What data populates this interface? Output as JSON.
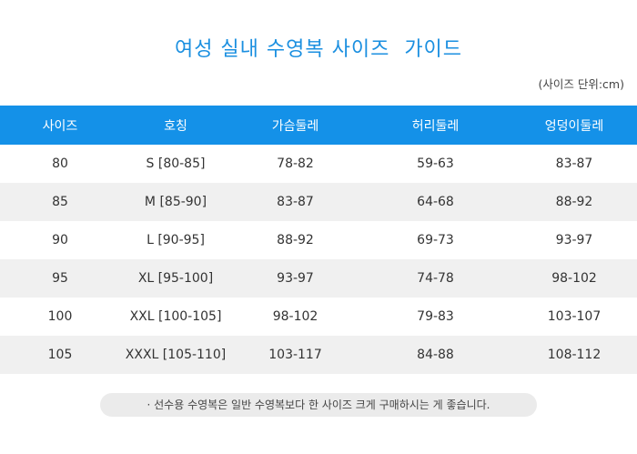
{
  "title": "여성 실내 수영복 사이즈  가이드",
  "unit": "(사이즈 단위:cm)",
  "table": {
    "headers": [
      "사이즈",
      "호칭",
      "가슴둘레",
      "허리둘레",
      "엉덩이둘레"
    ],
    "rows": [
      [
        "80",
        "S [80-85]",
        "78-82",
        "59-63",
        "83-87"
      ],
      [
        "85",
        "M [85-90]",
        "83-87",
        "64-68",
        "88-92"
      ],
      [
        "90",
        "L [90-95]",
        "88-92",
        "69-73",
        "93-97"
      ],
      [
        "95",
        "XL [95-100]",
        "93-97",
        "74-78",
        "98-102"
      ],
      [
        "100",
        "XXL [100-105]",
        "98-102",
        "79-83",
        "103-107"
      ],
      [
        "105",
        "XXXL [105-110]",
        "103-117",
        "84-88",
        "108-112"
      ]
    ]
  },
  "note": "· 선수용 수영복은 일반 수영복보다 한 사이즈 크게 구매하시는 게 좋습니다.",
  "colors": {
    "accent": "#1491e8",
    "title": "#1a8fe0",
    "alt_row": "#f0f0f0"
  }
}
